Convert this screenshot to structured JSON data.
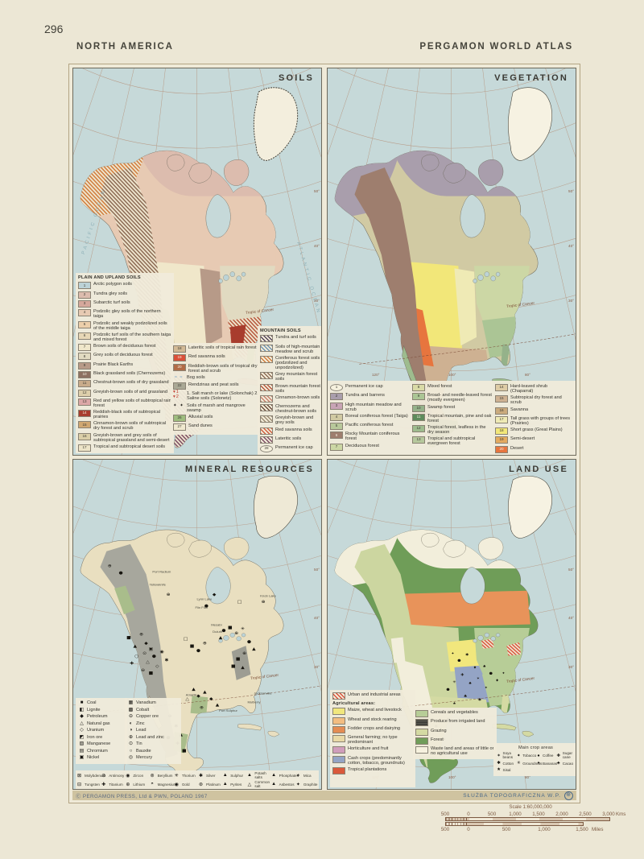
{
  "page": {
    "number": "296",
    "header_left": "NORTH AMERICA",
    "header_right": "PERGAMON WORLD ATLAS",
    "copyright": "Ⓒ PERGAMON PRESS, Ltd & PWN, POLAND 1967",
    "agency": "SŁUŻBA TOPOGRAFICZNA W.P."
  },
  "graticule": {
    "lon": [
      "120°",
      "100°",
      "80°"
    ],
    "lat": [
      "50°",
      "40°",
      "30°"
    ]
  },
  "annotations": {
    "tropic": "Tropic of Cancer",
    "pacific": "PACIFIC OCEAN",
    "atlantic": "ATLANTIC OCEAN"
  },
  "soils": {
    "title": "SOILS",
    "plain_header": "PLAIN AND UPLAND SOILS",
    "mountain_header": "MOUNTAIN SOILS",
    "plain1": [
      {
        "num": "1",
        "label": "Arctic polygon soils",
        "fill": "#bcd2d6"
      },
      {
        "num": "2",
        "label": "Tundra gley soils",
        "fill": "#dcbcae"
      },
      {
        "num": "3",
        "label": "Subarctic turf soils",
        "fill": "#d5a89c"
      },
      {
        "num": "4",
        "label": "Podzolic gley soils of the northern taiga",
        "fill": "#e7cab3"
      },
      {
        "num": "5",
        "label": "Podzolic and weakly podzolized soils of the middle taiga",
        "fill": "#eccfab"
      },
      {
        "num": "6",
        "label": "Podzolic turf soils of the southern taiga and mixed forest",
        "fill": "#e7d7b6"
      },
      {
        "num": "7",
        "label": "Brown soils of deciduous forest",
        "fill": "#f0e7ca"
      },
      {
        "num": "8",
        "label": "Grey soils of deciduous forest",
        "fill": "#e1dac1"
      },
      {
        "num": "9",
        "label": "Prairie Black Earths",
        "fill": "#b79a88"
      },
      {
        "num": "10",
        "label": "Black grassland soils (Chernozems)",
        "fill": "#8d7161",
        "dark": true
      },
      {
        "num": "11",
        "label": "Chestnut-brown soils of dry grassland",
        "fill": "#c9ac8b"
      },
      {
        "num": "12",
        "label": "Greyish-brown soils of arid grassland",
        "fill": "#ddcfab"
      },
      {
        "num": "13",
        "label": "Red and yellow soils of subtropical rain forest",
        "fill": "#dba7a7"
      },
      {
        "num": "14",
        "label": "Reddish-black soils of subtropical prairies",
        "fill": "#a83c2d",
        "dark": true
      },
      {
        "num": "15",
        "label": "Cinnamon-brown soils of subtropical dry forest and scrub",
        "fill": "#d0a872"
      },
      {
        "num": "16",
        "label": "Greyish-brown and grey soils of subtropical grassland and semi-desert",
        "fill": "#dbcfa8"
      },
      {
        "num": "17",
        "label": "Tropical and subtropical desert soils",
        "fill": "#ede4c8"
      }
    ],
    "plain2": [
      {
        "num": "18",
        "label": "Lateritic soils of tropical rain forest",
        "fill": "#d2b995"
      },
      {
        "num": "19",
        "label": "Red savanna soils",
        "fill": "#da5039",
        "dark": true
      },
      {
        "num": "20",
        "label": "Reddish-brown soils of tropical dry forest and scrub",
        "fill": "#b26b46",
        "dark": true
      },
      {
        "num": "21",
        "label": "Bog soils",
        "sym": "≈ ≈",
        "symColor": "#6f9fc4"
      },
      {
        "num": "22",
        "label": "Rendzinas and peat soils",
        "fill": "#aaa895"
      },
      {
        "num": "23",
        "label": "1. Salt marsh or lake (Solonchak)  2. Saline soils (Solonetz)",
        "sym": "▾1 ▾2",
        "symColor": "#c0392b"
      },
      {
        "num": "",
        "label": "Soils of marsh and mangrove swamp",
        "sym": "✦ ✦",
        "symColor": "#26241e"
      },
      {
        "num": "26",
        "label": "Alluvial soils",
        "fill": "#9ebc7e"
      },
      {
        "num": "27",
        "label": "Sand dunes",
        "fill": "#f0e9cf"
      }
    ],
    "mountain": [
      {
        "label": "Tundra and turf soils",
        "hatch": "#54445a"
      },
      {
        "label": "Soils of high-mountain meadow and scrub",
        "hatch": "#6f93b0"
      },
      {
        "label": "Coniferous forest soils (podzolized and unpodzolized)",
        "hatch": "#d07c3c"
      },
      {
        "label": "Grey mountain forest soils",
        "hatch": "#8d6c55"
      },
      {
        "label": "Brown mountain forest soils",
        "hatch": "#b6563c"
      },
      {
        "label": "Cinnamon-brown soils",
        "hatch": "#c67e6c"
      },
      {
        "label": "Chernozems and chestnut-brown soils",
        "hatch": "#6d4c3c"
      },
      {
        "label": "Greyish-brown and grey soils",
        "hatch": "#9c8c74"
      },
      {
        "label": "Red savanna soils",
        "hatch": "#d05c3c"
      },
      {
        "label": "Lateritic soils",
        "hatch": "#7c4c64"
      },
      {
        "num": "28",
        "label": "Permanent ice cap",
        "outline": "ellipse"
      }
    ]
  },
  "vegetation": {
    "title": "VEGETATION",
    "col1": [
      {
        "num": "1",
        "label": "Permanent ice cap",
        "outline": "ellipse"
      },
      {
        "num": "2",
        "label": "Tundra and barrens",
        "fill": "#a99eac"
      },
      {
        "num": "3",
        "label": "High mountain meadow and scrub",
        "fill": "#c8a4b5"
      },
      {
        "num": "4",
        "label": "Boreal coniferous forest (Taiga)",
        "fill": "#d1caa3"
      },
      {
        "num": "5",
        "label": "Pacific coniferous forest",
        "fill": "#b8c89b"
      },
      {
        "num": "6",
        "label": "Rocky Mountain coniferous forest",
        "fill": "#9e7e6e",
        "dark": true
      },
      {
        "num": "7",
        "label": "Deciduous forest",
        "fill": "#ccd7a5"
      }
    ],
    "col2": [
      {
        "num": "8",
        "label": "Mixed forest",
        "fill": "#d9daa7"
      },
      {
        "num": "9",
        "label": "Broad- and needle-leaved forest (mostly evergreen)",
        "fill": "#abc595"
      },
      {
        "num": "10",
        "label": "Swamp forest",
        "fill": "#95b28a"
      },
      {
        "num": "11",
        "label": "Tropical mountain, pine and oak forest",
        "fill": "#5d8b5b",
        "dark": true
      },
      {
        "num": "12",
        "label": "Tropical forest, leafless in the dry season",
        "fill": "#9ebc8e"
      },
      {
        "num": "13",
        "label": "Tropical and subtropical evergreen forest",
        "fill": "#b6c89d"
      }
    ],
    "col3": [
      {
        "num": "14",
        "label": "Hard-leaved shrub (Chaparral)",
        "fill": "#decca5"
      },
      {
        "num": "15",
        "label": "Subtropical dry forest and scrub",
        "fill": "#ceb192"
      },
      {
        "num": "16",
        "label": "Savanna",
        "fill": "#caaa7d"
      },
      {
        "num": "17",
        "label": "Tall grass with groups of trees (Prairies)",
        "fill": "#efeab5"
      },
      {
        "num": "18",
        "label": "Short grass (Great Plains)",
        "fill": "#f2e779"
      },
      {
        "num": "19",
        "label": "Semi-desert",
        "fill": "#e4aa5f"
      },
      {
        "num": "20",
        "label": "Desert",
        "fill": "#e7753e",
        "dark": true
      }
    ]
  },
  "minerals": {
    "title": "MINERAL RESOURCES",
    "col1": [
      {
        "glyph": "■",
        "label": "Coal"
      },
      {
        "glyph": "◧",
        "label": "Lignite"
      },
      {
        "glyph": "◆",
        "label": "Petroleum"
      },
      {
        "glyph": "△",
        "label": "Natural gas"
      },
      {
        "glyph": "◇",
        "label": "Uranium"
      },
      {
        "glyph": "◩",
        "label": "Iron ore"
      },
      {
        "glyph": "▨",
        "label": "Manganese"
      },
      {
        "glyph": "▤",
        "label": "Chromium"
      },
      {
        "glyph": "▣",
        "label": "Nickel"
      }
    ],
    "col2": [
      {
        "glyph": "▦",
        "label": "Vanadium"
      },
      {
        "glyph": "▩",
        "label": "Cobalt"
      },
      {
        "glyph": "⊖",
        "label": "Copper ore"
      },
      {
        "glyph": "◐",
        "label": "Zinc"
      },
      {
        "glyph": "◑",
        "label": "Lead"
      },
      {
        "glyph": "⊕",
        "label": "Lead and zinc"
      },
      {
        "glyph": "⊙",
        "label": "Tin"
      },
      {
        "glyph": "○",
        "label": "Bauxite"
      },
      {
        "glyph": "◎",
        "label": "Mercury"
      }
    ],
    "rowA": [
      {
        "glyph": "⊠",
        "label": "Molybdenum"
      },
      {
        "glyph": "⊘",
        "label": "Antimony"
      },
      {
        "glyph": "◉",
        "label": "Zircon"
      },
      {
        "glyph": "⊚",
        "label": "Beryllium"
      },
      {
        "glyph": "✳",
        "label": "Thorium"
      },
      {
        "glyph": "✱",
        "label": "Silver"
      },
      {
        "glyph": "▲",
        "label": "Sulphur"
      },
      {
        "glyph": "▲",
        "label": "Potash salts"
      },
      {
        "glyph": "▲",
        "label": "Phosphates"
      },
      {
        "glyph": "✶",
        "label": "Mica"
      }
    ],
    "rowB": [
      {
        "glyph": "⊟",
        "label": "Tungsten"
      },
      {
        "glyph": "✚",
        "label": "Titanium"
      },
      {
        "glyph": "⊕",
        "label": "Lithium"
      },
      {
        "glyph": "◓",
        "label": "Magnesium"
      },
      {
        "glyph": "◉",
        "label": "Gold"
      },
      {
        "glyph": "⊛",
        "label": "Platinum"
      },
      {
        "glyph": "▲",
        "label": "Pyrites"
      },
      {
        "glyph": "△",
        "label": "Common salt"
      },
      {
        "glyph": "▲",
        "label": "Asbestos"
      },
      {
        "glyph": "✦",
        "label": "Graphite"
      }
    ],
    "places": [
      "Port Radium",
      "Yellowknife",
      "Lynn Lake",
      "Flin Flon",
      "Mesabi",
      "Duluth",
      "Knob Lake",
      "Amarillo",
      "Port Sulphur",
      "Mulberry",
      "Jacksonville"
    ]
  },
  "landuse": {
    "title": "LAND USE",
    "urban_list": [
      {
        "label": "Urban and industrial areas",
        "hatch": "#d9513a"
      }
    ],
    "agr_header": "Agricultural areas:",
    "col1": [
      {
        "label": "Maize, wheat and livestock",
        "fill": "#f1e77d"
      },
      {
        "label": "Wheat and stock rearing",
        "fill": "#f3bd81"
      },
      {
        "label": "Fodder crops and dairying",
        "fill": "#e48c53"
      },
      {
        "label": "General farming; no type predominant",
        "fill": "#e9d9a6"
      },
      {
        "label": "Horticulture and fruit",
        "fill": "#d09dbb"
      },
      {
        "label": "Cash crops (predominantly cotton, tobacco, groundnuts)",
        "fill": "#94a4c5"
      },
      {
        "label": "Tropical plantations",
        "fill": "#da593b",
        "dark": true
      }
    ],
    "col2": [
      {
        "label": "Cereals and vegetables",
        "fill": "#b7cd97"
      },
      {
        "label": "Produce from irrigated land",
        "hatchH": "#55554c"
      },
      {
        "label": "Grazing",
        "fill": "#d4daa3"
      },
      {
        "label": "Forest",
        "fill": "#709d59",
        "dark": true
      },
      {
        "label": "Waste land and areas of little or no agricultural use",
        "outline": "rect"
      }
    ],
    "crops_header": "Main crop areas",
    "crops": [
      {
        "glyph": "✶",
        "label": "Soya beans"
      },
      {
        "glyph": "✦",
        "label": "Tobacco"
      },
      {
        "glyph": "●",
        "label": "Coffee"
      },
      {
        "glyph": "✚",
        "label": "Sugar cane"
      },
      {
        "glyph": "✱",
        "label": "Cotton"
      },
      {
        "glyph": "✳",
        "label": "Groundnuts"
      },
      {
        "glyph": "♦",
        "label": "Bananas"
      },
      {
        "glyph": "♣",
        "label": "Cacao"
      },
      {
        "glyph": "★",
        "label": "Sisal"
      }
    ]
  },
  "scale": {
    "title": "Scale 1:60,000,000",
    "km": [
      "500",
      "0",
      "500",
      "1,000",
      "1,500",
      "2,000",
      "2,500",
      "3,000"
    ],
    "km_unit": "Kms",
    "miles": [
      "500",
      "0",
      "500",
      "1,000",
      "1,500"
    ],
    "miles_unit": "Miles"
  }
}
